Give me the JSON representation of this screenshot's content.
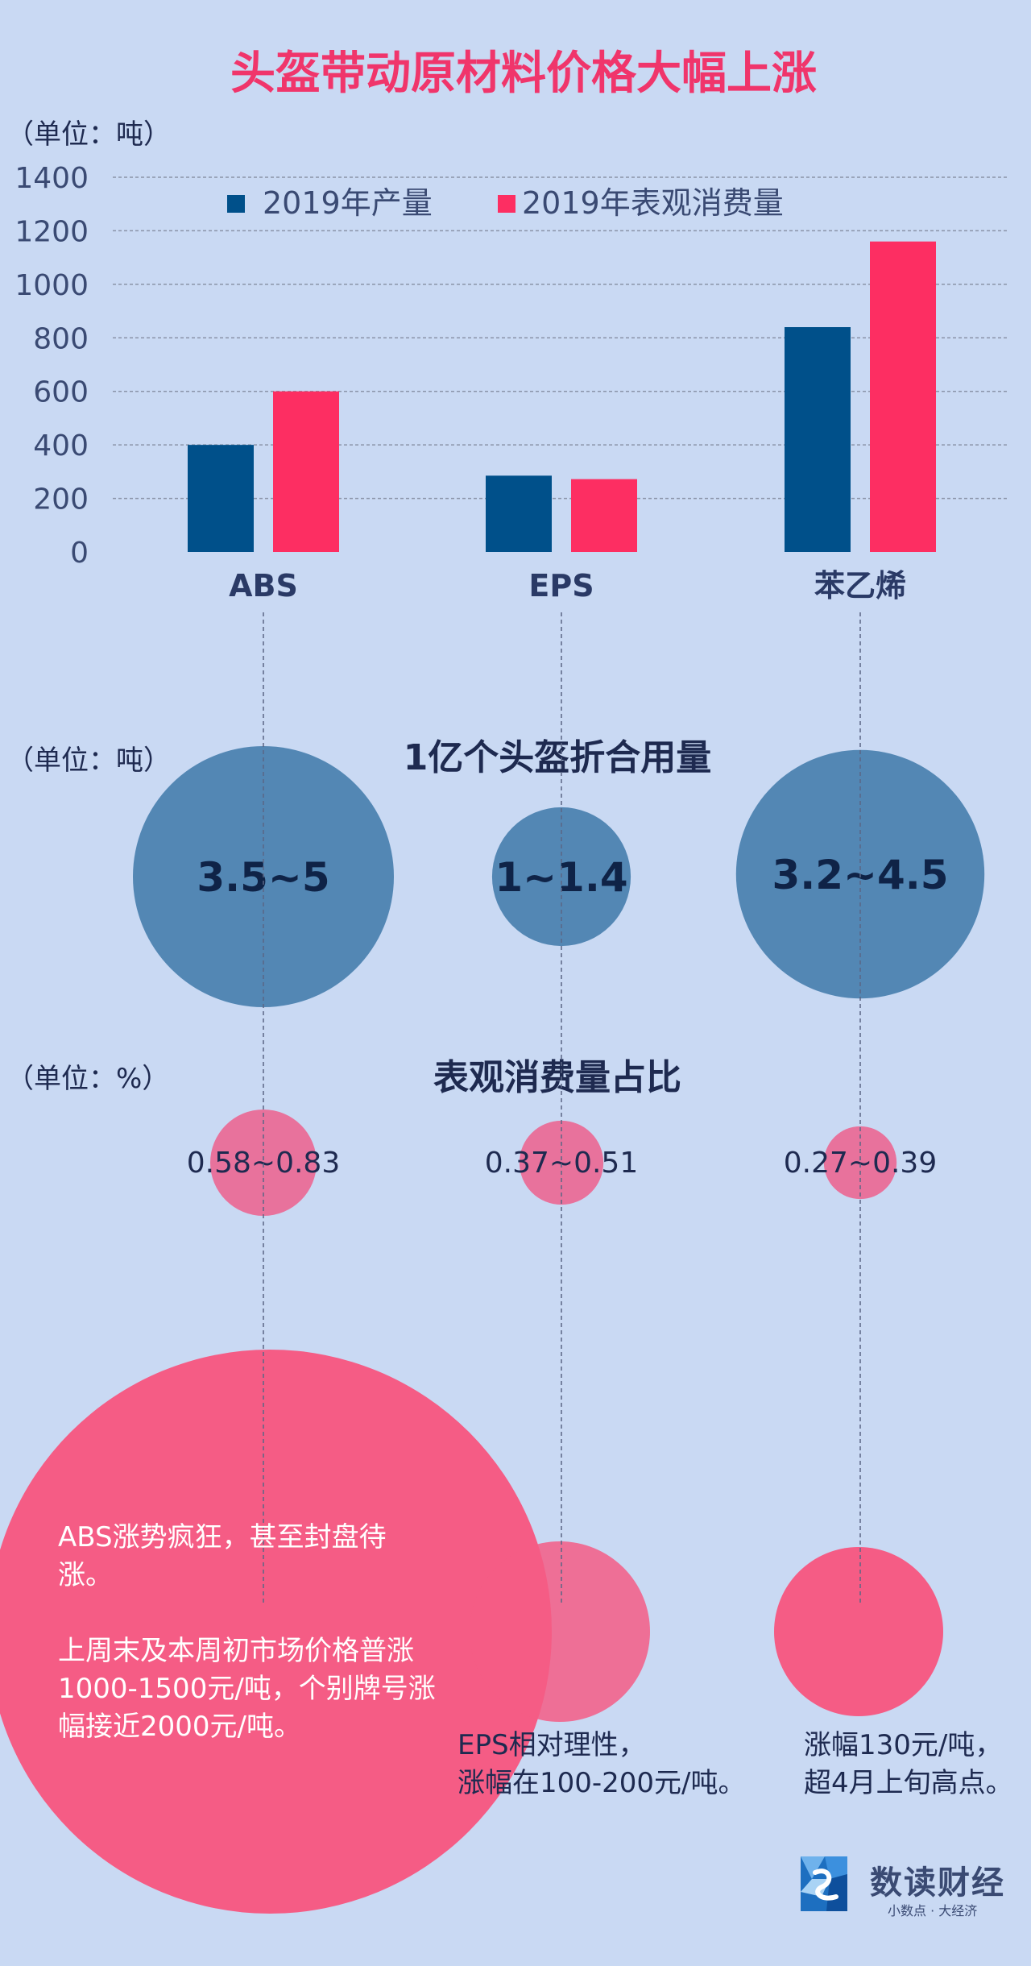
{
  "title": "头盔带动原材料价格大幅上涨",
  "colors": {
    "background": "#c9d9f3",
    "title": "#f0356b",
    "production": "#00508a",
    "consumption": "#fd2e62",
    "bubble_blue": "#5387b4",
    "bubble_pink": "#f0608a",
    "dark_text": "#1e2a50"
  },
  "chart_data": [
    {
      "type": "bar",
      "unit_label": "（单位：吨）",
      "categories": [
        "ABS",
        "EPS",
        "苯乙烯"
      ],
      "series": [
        {
          "name": "2019年产量",
          "color": "#00508a",
          "values": [
            400,
            285,
            840
          ]
        },
        {
          "name": "2019年表观消费量",
          "color": "#fd2e62",
          "values": [
            600,
            272,
            1160
          ]
        }
      ],
      "ylim": [
        0,
        1400
      ],
      "yticks": [
        0,
        200,
        400,
        600,
        800,
        1000,
        1200,
        1400
      ],
      "grid": true,
      "legend": "top-center"
    },
    {
      "type": "bubble",
      "title": "1亿个头盔折合用量",
      "unit_label": "（单位：吨）",
      "categories": [
        "ABS",
        "EPS",
        "苯乙烯"
      ],
      "labels": [
        "3.5~5",
        "1~1.4",
        "3.2~4.5"
      ],
      "values": [
        4.25,
        1.2,
        3.85
      ]
    },
    {
      "type": "bubble",
      "title": "表观消费量占比",
      "unit_label": "（单位：%）",
      "categories": [
        "ABS",
        "EPS",
        "苯乙烯"
      ],
      "labels": [
        "0.58~0.83",
        "0.37~0.51",
        "0.27~0.39"
      ],
      "values": [
        0.705,
        0.44,
        0.33
      ]
    }
  ],
  "notes": {
    "abs": {
      "line1": "ABS涨势疯狂，甚至封盘待涨。",
      "line2": "上周末及本周初市场价格普涨1000-1500元/吨，个别牌号涨幅接近2000元/吨。"
    },
    "eps": {
      "line1": "EPS相对理性，",
      "line2": "涨幅在100-200元/吨。"
    },
    "styrene": {
      "line1": "涨幅130元/吨，",
      "line2": "超4月上旬高点。"
    }
  },
  "brand": {
    "name": "数读财经",
    "slogan": "小数点 · 大经济"
  }
}
